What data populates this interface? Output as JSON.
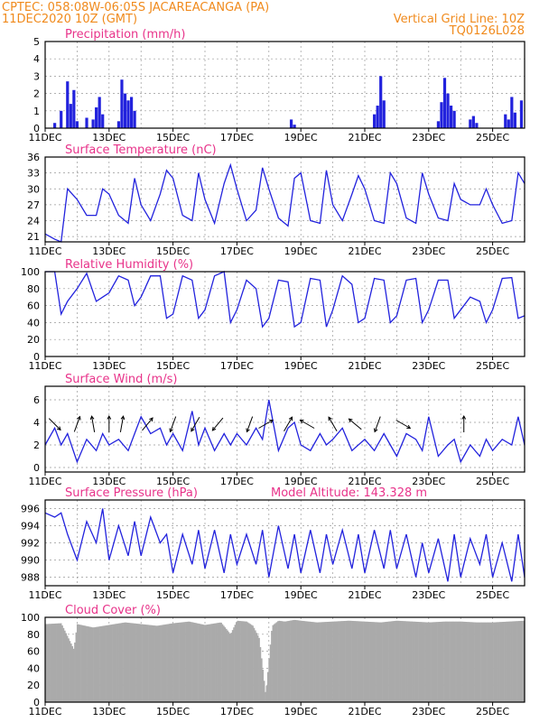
{
  "header": {
    "station": "CPTEC:    058:08W-06:05S   JACAREACANGA (PA)",
    "run": "11DEC2020 10Z (GMT)",
    "grid_note": "Vertical Grid Line: 10Z",
    "code": "TQ0126L028"
  },
  "colors": {
    "line": "#2222dd",
    "bars": "#2222dd",
    "cloud": "#aaaaaa",
    "header": "#f08a1c",
    "title": "#e8338a"
  },
  "x_axis": {
    "start_day": 11,
    "end_day": 26,
    "tick_labels": [
      "11DEC",
      "13DEC",
      "15DEC",
      "17DEC",
      "19DEC",
      "21DEC",
      "23DEC",
      "25DEC"
    ],
    "tick_days": [
      11,
      13,
      15,
      17,
      19,
      21,
      23,
      25
    ]
  },
  "chart_data": [
    {
      "type": "bar",
      "title": "Precipitation (mm/h)",
      "ylim": [
        0,
        5
      ],
      "yticks": [
        0,
        1,
        2,
        3,
        4,
        5
      ],
      "x": [
        11.3,
        11.5,
        11.7,
        11.8,
        11.9,
        12.0,
        12.3,
        12.5,
        12.6,
        12.7,
        12.8,
        13.3,
        13.4,
        13.5,
        13.6,
        13.7,
        13.8,
        18.7,
        18.8,
        21.3,
        21.4,
        21.5,
        21.6,
        23.3,
        23.4,
        23.5,
        23.6,
        23.7,
        23.8,
        24.3,
        24.4,
        24.5,
        25.4,
        25.5,
        25.6,
        25.7,
        25.9
      ],
      "values": [
        0.3,
        1.0,
        2.7,
        1.4,
        2.2,
        0.4,
        0.6,
        0.5,
        1.2,
        1.8,
        0.8,
        0.4,
        2.8,
        2.0,
        1.6,
        1.8,
        1.0,
        0.5,
        0.2,
        0.8,
        1.3,
        3.0,
        1.6,
        0.4,
        1.5,
        2.9,
        2.0,
        1.3,
        1.0,
        0.5,
        0.7,
        0.3,
        0.8,
        0.5,
        1.8,
        0.9,
        1.6
      ]
    },
    {
      "type": "line",
      "title": "Surface Temperature (nC)",
      "ylim": [
        20,
        36
      ],
      "yticks": [
        21,
        24,
        27,
        30,
        33,
        36
      ],
      "x": [
        11.0,
        11.3,
        11.5,
        11.7,
        12.0,
        12.3,
        12.6,
        12.8,
        13.0,
        13.3,
        13.6,
        13.8,
        14.0,
        14.3,
        14.6,
        14.8,
        15.0,
        15.3,
        15.6,
        15.8,
        16.0,
        16.3,
        16.6,
        16.8,
        17.0,
        17.3,
        17.6,
        17.8,
        18.0,
        18.3,
        18.6,
        18.8,
        19.0,
        19.3,
        19.6,
        19.8,
        20.0,
        20.3,
        20.6,
        20.8,
        21.0,
        21.3,
        21.6,
        21.8,
        22.0,
        22.3,
        22.6,
        22.8,
        23.0,
        23.3,
        23.6,
        23.8,
        24.0,
        24.3,
        24.6,
        24.8,
        25.0,
        25.3,
        25.6,
        25.8,
        26.0
      ],
      "values": [
        21.5,
        20.5,
        20.0,
        30.0,
        28.0,
        25.0,
        25.0,
        30.0,
        29.0,
        25.0,
        23.5,
        32.0,
        27.0,
        24.0,
        29.0,
        33.5,
        32.0,
        25.0,
        24.0,
        33.0,
        28.0,
        23.5,
        31.0,
        34.5,
        30.0,
        24.0,
        26.0,
        34.0,
        30.0,
        24.5,
        23.0,
        32.0,
        33.0,
        24.0,
        23.5,
        33.5,
        27.0,
        24.0,
        29.0,
        32.5,
        30.0,
        24.0,
        23.5,
        33.0,
        31.0,
        24.5,
        23.5,
        33.0,
        29.0,
        24.5,
        24.0,
        31.0,
        28.0,
        27.0,
        27.0,
        30.0,
        27.0,
        23.5,
        24.0,
        33.0,
        31.0
      ]
    },
    {
      "type": "line",
      "title": "Relative Humidity (%)",
      "ylim": [
        0,
        100
      ],
      "yticks": [
        0,
        20,
        40,
        60,
        80,
        100
      ],
      "x": [
        11.0,
        11.3,
        11.5,
        11.7,
        12.0,
        12.3,
        12.6,
        12.8,
        13.0,
        13.3,
        13.6,
        13.8,
        14.0,
        14.3,
        14.6,
        14.8,
        15.0,
        15.3,
        15.6,
        15.8,
        16.0,
        16.3,
        16.6,
        16.8,
        17.0,
        17.3,
        17.6,
        17.8,
        18.0,
        18.3,
        18.6,
        18.8,
        19.0,
        19.3,
        19.6,
        19.8,
        20.0,
        20.3,
        20.6,
        20.8,
        21.0,
        21.3,
        21.6,
        21.8,
        22.0,
        22.3,
        22.6,
        22.8,
        23.0,
        23.3,
        23.6,
        23.8,
        24.0,
        24.3,
        24.6,
        24.8,
        25.0,
        25.3,
        25.6,
        25.8,
        26.0
      ],
      "values": [
        100,
        100,
        50,
        65,
        80,
        98,
        65,
        70,
        75,
        95,
        90,
        60,
        70,
        95,
        95,
        45,
        50,
        95,
        90,
        45,
        55,
        95,
        100,
        40,
        55,
        90,
        80,
        35,
        45,
        90,
        88,
        35,
        40,
        92,
        90,
        35,
        55,
        95,
        85,
        40,
        45,
        92,
        90,
        40,
        48,
        90,
        92,
        40,
        55,
        90,
        90,
        45,
        55,
        70,
        65,
        40,
        55,
        92,
        93,
        45,
        48
      ]
    },
    {
      "type": "line",
      "title": "Surface Wind (m/s)",
      "ylim": [
        -0.4,
        7.2
      ],
      "yticks": [
        0,
        2,
        4,
        6
      ],
      "x": [
        11.0,
        11.3,
        11.5,
        11.7,
        12.0,
        12.3,
        12.6,
        12.8,
        13.0,
        13.3,
        13.6,
        13.8,
        14.0,
        14.3,
        14.6,
        14.8,
        15.0,
        15.3,
        15.6,
        15.8,
        16.0,
        16.3,
        16.6,
        16.8,
        17.0,
        17.3,
        17.6,
        17.8,
        18.0,
        18.3,
        18.6,
        18.8,
        19.0,
        19.3,
        19.6,
        19.8,
        20.0,
        20.3,
        20.6,
        20.8,
        21.0,
        21.3,
        21.6,
        21.8,
        22.0,
        22.3,
        22.6,
        22.8,
        23.0,
        23.3,
        23.6,
        23.8,
        24.0,
        24.3,
        24.6,
        24.8,
        25.0,
        25.3,
        25.6,
        25.8,
        26.0
      ],
      "values": [
        2.0,
        3.5,
        2.0,
        3.0,
        0.5,
        2.5,
        1.5,
        3.0,
        2.0,
        2.5,
        1.5,
        3.0,
        4.5,
        3.0,
        3.5,
        2.0,
        3.0,
        1.5,
        5.0,
        2.0,
        3.5,
        1.5,
        3.0,
        2.0,
        3.0,
        2.0,
        3.5,
        2.5,
        6.0,
        1.5,
        3.5,
        4.0,
        2.0,
        1.5,
        3.0,
        2.0,
        2.5,
        3.5,
        1.5,
        2.0,
        2.5,
        1.5,
        3.0,
        2.0,
        1.0,
        3.0,
        2.5,
        1.5,
        4.5,
        1.0,
        2.0,
        2.5,
        0.5,
        2.0,
        1.0,
        2.5,
        1.5,
        2.5,
        2.0,
        4.5,
        2.0
      ],
      "arrows_deg": [
        135,
        20,
        350,
        0,
        10,
        40,
        200,
        210,
        220,
        200,
        60,
        30,
        300,
        330,
        310,
        200,
        120,
        0
      ],
      "arrows_x": [
        11.3,
        12.0,
        12.5,
        13.0,
        13.4,
        14.2,
        15.0,
        15.7,
        16.4,
        17.4,
        17.9,
        18.6,
        19.2,
        20.0,
        20.7,
        21.4,
        22.2,
        24.1
      ]
    },
    {
      "type": "line",
      "title": "Surface Pressure (hPa)",
      "subtitle": "Model Altitude: 143.328  m",
      "ylim": [
        987,
        997
      ],
      "yticks": [
        988,
        990,
        992,
        994,
        996
      ],
      "x": [
        11.0,
        11.3,
        11.5,
        11.7,
        12.0,
        12.3,
        12.6,
        12.8,
        13.0,
        13.3,
        13.6,
        13.8,
        14.0,
        14.3,
        14.6,
        14.8,
        15.0,
        15.3,
        15.6,
        15.8,
        16.0,
        16.3,
        16.6,
        16.8,
        17.0,
        17.3,
        17.6,
        17.8,
        18.0,
        18.3,
        18.6,
        18.8,
        19.0,
        19.3,
        19.6,
        19.8,
        20.0,
        20.3,
        20.6,
        20.8,
        21.0,
        21.3,
        21.6,
        21.8,
        22.0,
        22.3,
        22.6,
        22.8,
        23.0,
        23.3,
        23.6,
        23.8,
        24.0,
        24.3,
        24.6,
        24.8,
        25.0,
        25.3,
        25.6,
        25.8,
        26.0
      ],
      "values": [
        995.5,
        995.0,
        995.5,
        993.0,
        990.0,
        994.5,
        992.0,
        996.0,
        990.0,
        994.0,
        990.5,
        994.5,
        990.5,
        995.0,
        992.0,
        993.0,
        988.5,
        993.0,
        989.5,
        993.5,
        989.0,
        993.5,
        988.5,
        993.0,
        989.5,
        993.0,
        989.5,
        993.5,
        988.0,
        994.0,
        989.0,
        993.0,
        988.5,
        993.5,
        988.5,
        993.0,
        989.5,
        993.5,
        989.0,
        993.0,
        988.5,
        993.5,
        989.0,
        993.5,
        989.0,
        993.0,
        988.0,
        992.0,
        988.5,
        992.5,
        987.5,
        993.0,
        988.0,
        992.5,
        989.5,
        993.0,
        988.0,
        992.0,
        987.5,
        993.0,
        988.0
      ]
    },
    {
      "type": "area",
      "title": "Cloud Cover (%)",
      "ylim": [
        0,
        100
      ],
      "yticks": [
        0,
        20,
        40,
        60,
        80,
        100
      ],
      "x": [
        11.0,
        11.5,
        11.9,
        12.0,
        12.5,
        13.0,
        13.5,
        14.0,
        14.5,
        15.0,
        15.5,
        16.0,
        16.5,
        16.8,
        17.0,
        17.3,
        17.5,
        17.7,
        17.9,
        18.1,
        18.3,
        18.5,
        18.8,
        19.0,
        19.5,
        20.0,
        20.5,
        21.0,
        21.5,
        22.0,
        22.5,
        23.0,
        23.5,
        24.0,
        24.5,
        25.0,
        25.5,
        26.0
      ],
      "values": [
        92,
        93,
        62,
        92,
        88,
        91,
        94,
        92,
        90,
        93,
        95,
        91,
        94,
        80,
        96,
        95,
        90,
        75,
        8,
        90,
        96,
        95,
        97,
        96,
        94,
        95,
        96,
        95,
        94,
        96,
        95,
        94,
        95,
        95,
        94,
        94,
        95,
        96
      ]
    }
  ]
}
